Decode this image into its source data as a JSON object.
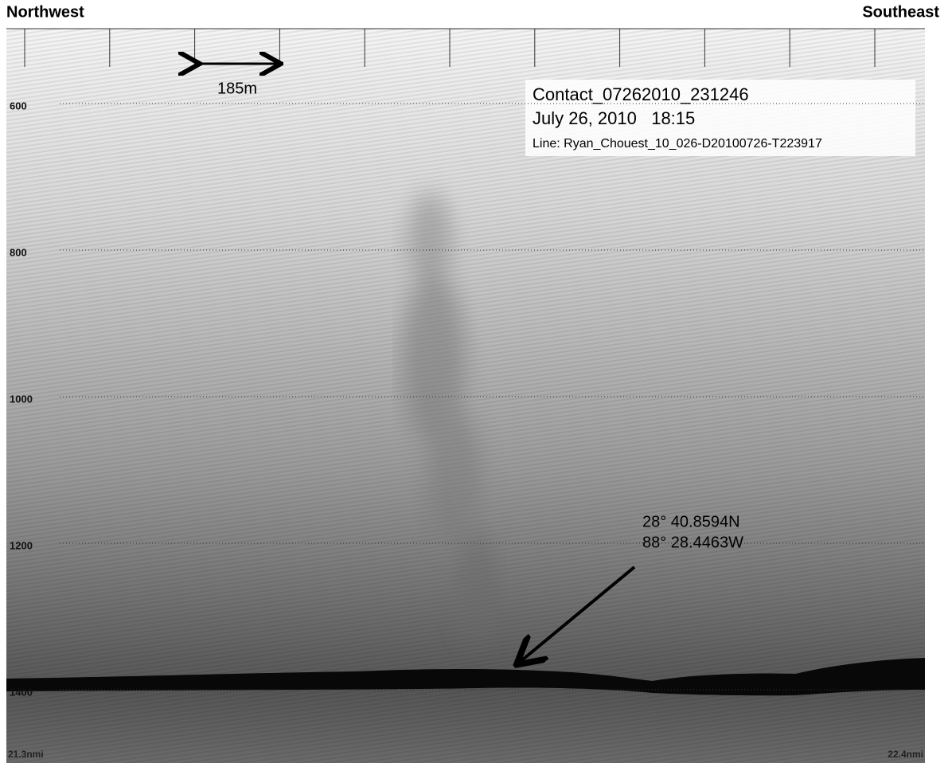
{
  "header": {
    "left": "Northwest",
    "right": "Southeast"
  },
  "scale_bar": "185m",
  "contact": {
    "name": "Contact_07262010_231246",
    "datetime": "July 26, 2010   18:15",
    "line": "Line: Ryan_Chouest_10_026-D20100726-T223917"
  },
  "depth_labels": [
    600,
    800,
    1000,
    1200,
    1400
  ],
  "position": {
    "lat": "28° 40.8594N",
    "lon": "88° 28.4463W"
  },
  "distance": {
    "start": "21.3nmi",
    "end": "22.4nmi"
  }
}
